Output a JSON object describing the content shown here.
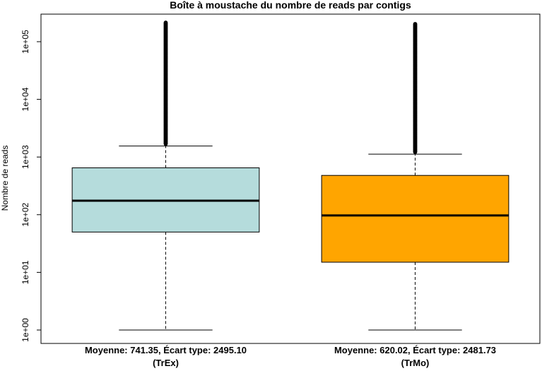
{
  "chart_data": {
    "type": "boxplot",
    "title": "Boîte à moustache du nombre de reads par contigs",
    "ylabel": "Nombre de reads",
    "yscale": "log",
    "ylim": [
      0.8,
      260000
    ],
    "yticks": [
      1,
      10,
      100,
      1000,
      10000,
      100000
    ],
    "ytick_labels": [
      "1e+00",
      "1e+01",
      "1e+02",
      "1e+03",
      "1e+04",
      "1e+05"
    ],
    "grid": false,
    "legend": "none",
    "categories": [
      "TrEx",
      "TrMo"
    ],
    "boxes": [
      {
        "label_line1": "Moyenne: 741.35, Écart type: 2495.10",
        "label_line2": "(TrEx)",
        "color": "#b5dcdc",
        "whisker_low": 1,
        "q1": 50,
        "median": 175,
        "q3": 650,
        "whisker_high": 1550,
        "outlier_max": 220000
      },
      {
        "label_line1": "Moyenne: 620.02, Écart type: 2481.73",
        "label_line2": "(TrMo)",
        "color": "#ffa500",
        "whisker_low": 1,
        "q1": 15,
        "median": 97,
        "q3": 480,
        "whisker_high": 1120,
        "outlier_max": 205000
      }
    ]
  }
}
